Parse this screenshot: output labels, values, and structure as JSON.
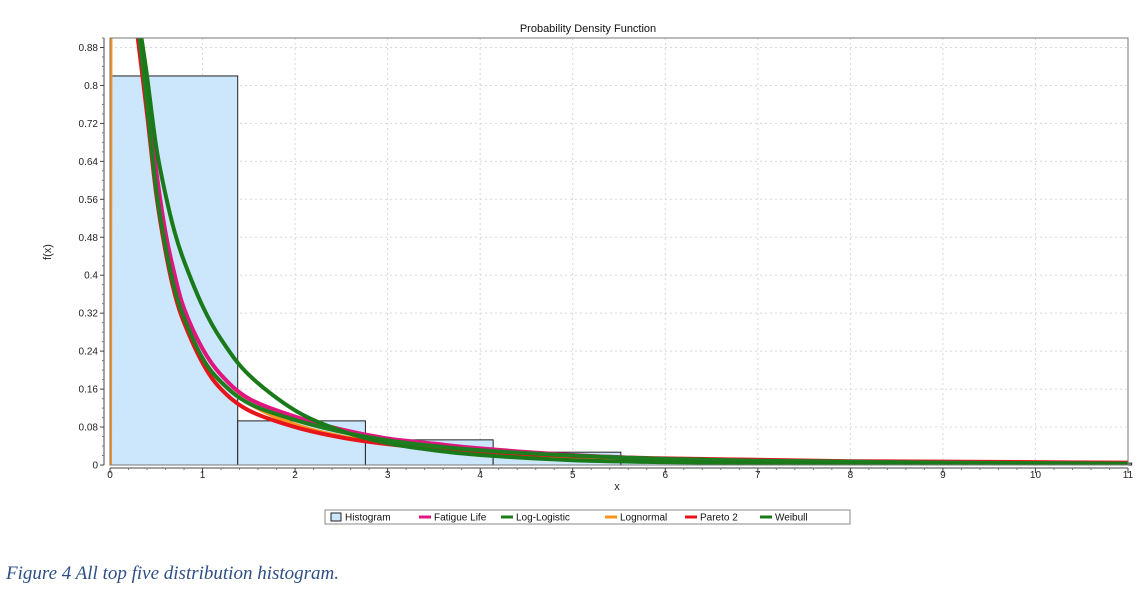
{
  "chart_data": {
    "type": "line",
    "title": "Probability Density Function",
    "xlabel": "x",
    "ylabel": "f(x)",
    "xlim": [
      0,
      11
    ],
    "ylim": [
      0,
      0.9
    ],
    "x_ticks": [
      0,
      1,
      2,
      3,
      4,
      5,
      6,
      7,
      8,
      9,
      10,
      11
    ],
    "y_ticks": [
      0,
      0.08,
      0.16,
      0.24,
      0.32,
      0.4,
      0.48,
      0.56,
      0.64,
      0.72,
      0.8,
      0.88
    ],
    "y_tick_labels": [
      "0",
      "0.08",
      "0.16",
      "0.24",
      "0.32",
      "0.4",
      "0.48",
      "0.56",
      "0.64",
      "0.72",
      "0.8",
      "0.88"
    ],
    "grid": true,
    "legend_position": "bottom",
    "histogram": {
      "name": "Histogram",
      "color": "#cce6fc",
      "bins": [
        {
          "x0": 0,
          "x1": 1.38,
          "value": 0.82
        },
        {
          "x0": 1.38,
          "x1": 2.76,
          "value": 0.093
        },
        {
          "x0": 2.76,
          "x1": 4.14,
          "value": 0.053
        },
        {
          "x0": 4.14,
          "x1": 5.52,
          "value": 0.027
        },
        {
          "x0": 5.52,
          "x1": 6.9,
          "value": 0.01
        },
        {
          "x0": 6.9,
          "x1": 8.28,
          "value": 0.005
        },
        {
          "x0": 8.28,
          "x1": 9.66,
          "value": 0.003
        },
        {
          "x0": 9.66,
          "x1": 11.04,
          "value": 0.004
        }
      ]
    },
    "series": [
      {
        "name": "Fatigue Life",
        "color": "#e0157f",
        "x": [
          0.32,
          0.4,
          0.5,
          0.6,
          0.7,
          0.8,
          1.0,
          1.2,
          1.5,
          2.0,
          2.5,
          3.0,
          3.5,
          4.0,
          5.0,
          6.0,
          7.0,
          8.0,
          9.0,
          10.0,
          11.0
        ],
        "y": [
          0.9,
          0.78,
          0.62,
          0.49,
          0.4,
          0.33,
          0.245,
          0.19,
          0.14,
          0.102,
          0.075,
          0.056,
          0.045,
          0.035,
          0.021,
          0.013,
          0.009,
          0.007,
          0.005,
          0.004,
          0.003
        ]
      },
      {
        "name": "Log-Logistic",
        "color": "#1e7d1e",
        "x": [
          0.32,
          0.4,
          0.5,
          0.6,
          0.7,
          0.8,
          1.0,
          1.2,
          1.5,
          2.0,
          2.5,
          3.0,
          3.5,
          4.0,
          5.0,
          6.0,
          7.0,
          8.0,
          9.0,
          10.0,
          11.0
        ],
        "y": [
          0.9,
          0.76,
          0.58,
          0.46,
          0.37,
          0.31,
          0.225,
          0.175,
          0.13,
          0.095,
          0.07,
          0.052,
          0.04,
          0.031,
          0.02,
          0.013,
          0.009,
          0.007,
          0.005,
          0.004,
          0.003
        ]
      },
      {
        "name": "Lognormal",
        "color": "#f7941d",
        "x": [
          0.0,
          0.005,
          0.01,
          0.32,
          0.4,
          0.5,
          0.6,
          0.7,
          0.8,
          1.0,
          1.2,
          1.5,
          2.0,
          2.5,
          3.0,
          3.5,
          4.0,
          5.0,
          6.0,
          7.0,
          8.0,
          9.0,
          10.0,
          11.0
        ],
        "y": [
          0.0,
          0.9,
          0.9,
          0.9,
          0.75,
          0.58,
          0.46,
          0.37,
          0.305,
          0.225,
          0.175,
          0.13,
          0.085,
          0.06,
          0.045,
          0.034,
          0.026,
          0.016,
          0.011,
          0.008,
          0.006,
          0.004,
          0.003,
          0.003
        ]
      },
      {
        "name": "Pareto 2",
        "color": "#e8141b",
        "x": [
          0.3,
          0.4,
          0.5,
          0.6,
          0.7,
          0.8,
          1.0,
          1.2,
          1.5,
          2.0,
          2.5,
          3.0,
          3.5,
          4.0,
          5.0,
          6.0,
          7.0,
          8.0,
          9.0,
          10.0,
          11.0
        ],
        "y": [
          0.9,
          0.74,
          0.57,
          0.45,
          0.36,
          0.3,
          0.215,
          0.16,
          0.115,
          0.08,
          0.058,
          0.044,
          0.035,
          0.028,
          0.019,
          0.014,
          0.011,
          0.008,
          0.007,
          0.006,
          0.005
        ]
      },
      {
        "name": "Weibull",
        "color": "#1a7a1a",
        "x": [
          0.34,
          0.4,
          0.5,
          0.6,
          0.7,
          0.8,
          1.0,
          1.2,
          1.5,
          2.0,
          2.5,
          3.0,
          3.5,
          4.0,
          5.0,
          6.0,
          7.0,
          8.0,
          9.0,
          10.0,
          11.0
        ],
        "y": [
          0.9,
          0.82,
          0.67,
          0.57,
          0.49,
          0.43,
          0.335,
          0.265,
          0.19,
          0.115,
          0.072,
          0.046,
          0.031,
          0.021,
          0.01,
          0.006,
          0.004,
          0.003,
          0.002,
          0.002,
          0.002
        ]
      }
    ]
  },
  "caption": "Figure 4 All top five distribution histogram."
}
